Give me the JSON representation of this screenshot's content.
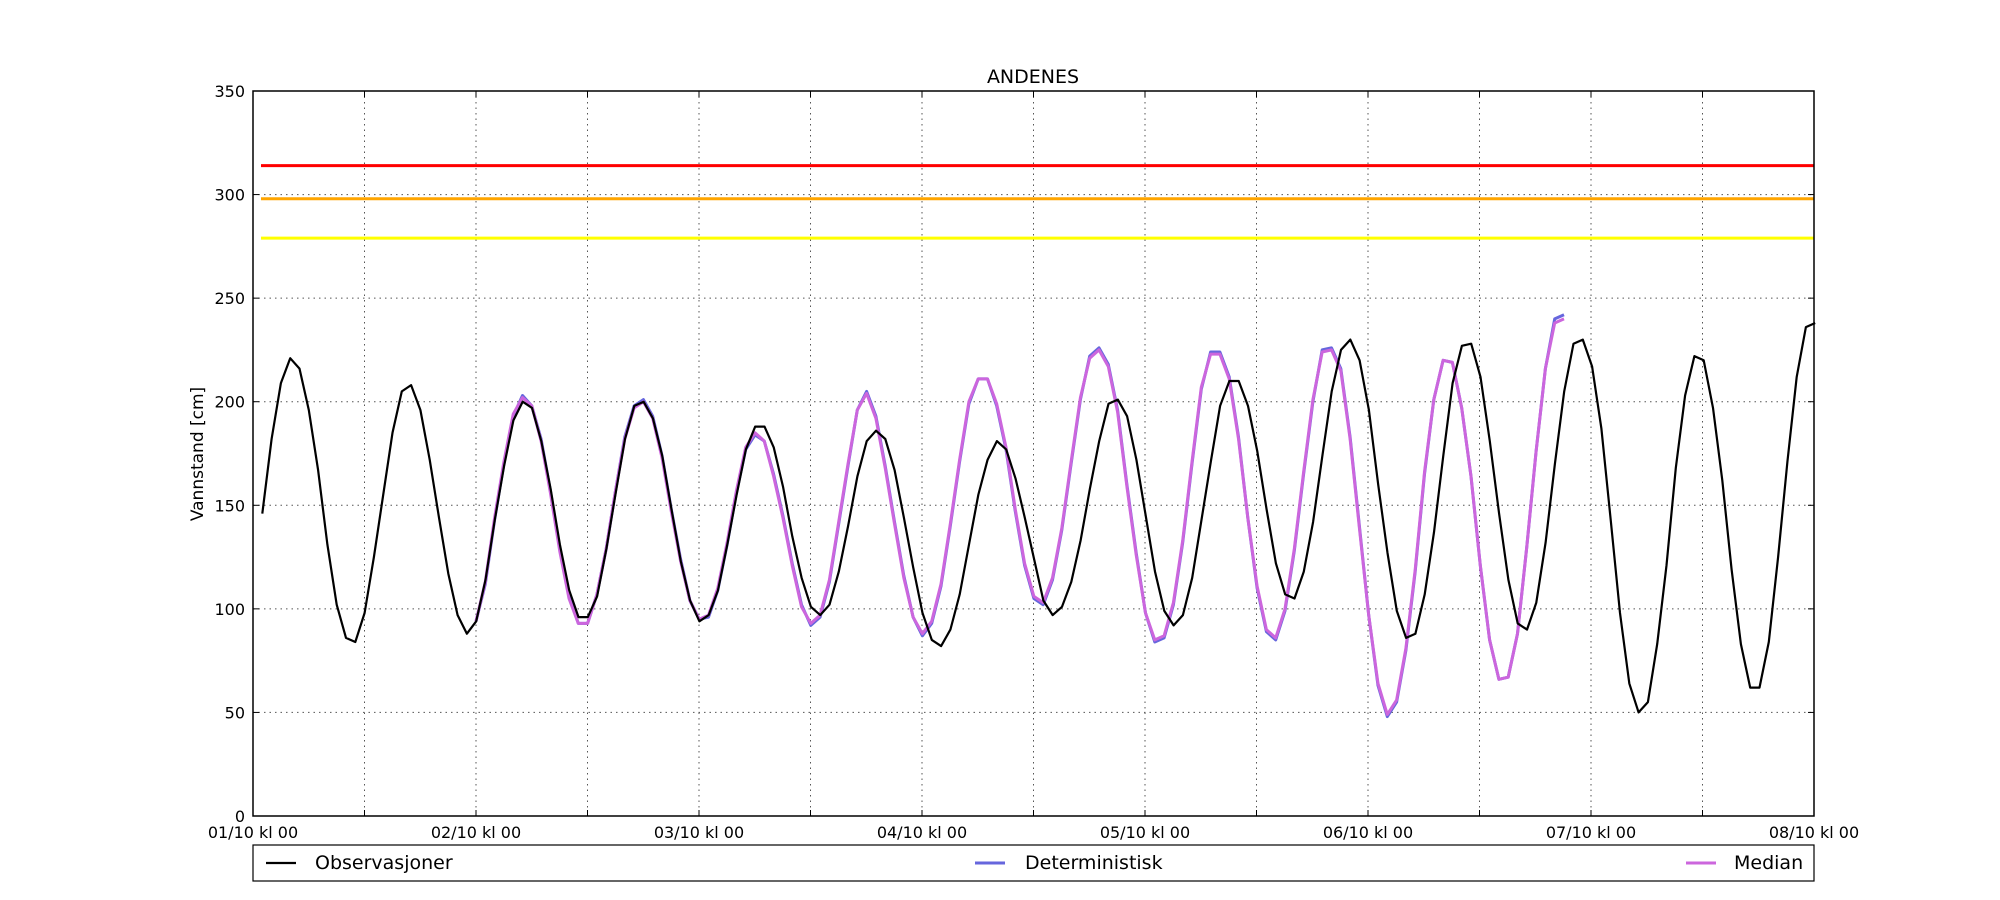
{
  "chart_data": {
    "type": "line",
    "title": "ANDENES",
    "xlabel": "",
    "ylabel": "Vannstand [cm]",
    "ylim": [
      0,
      350
    ],
    "yticks": [
      0,
      50,
      100,
      150,
      200,
      250,
      300,
      350
    ],
    "xlim": [
      0,
      7
    ],
    "x_unit": "days after 01/10 kl 00",
    "xtick_labels": [
      "01/10 kl 00",
      "02/10 kl 00",
      "03/10 kl 00",
      "04/10 kl 00",
      "05/10 kl 00",
      "06/10 kl 00",
      "07/10 kl 00",
      "08/10 kl 00"
    ],
    "grid": true,
    "legend_position": "bottom",
    "thresholds": [
      {
        "value": 314,
        "color": "#ff0000"
      },
      {
        "value": 298,
        "color": "#ffa500"
      },
      {
        "value": 279,
        "color": "#ffff00"
      }
    ],
    "series": [
      {
        "name": "Observasjoner",
        "color": "#000000",
        "x_start": 0.0417,
        "x_step": 0.0417,
        "values": [
          146,
          182,
          209,
          221,
          216,
          196,
          167,
          131,
          102,
          86,
          84,
          98,
          125,
          155,
          185,
          205,
          208,
          196,
          172,
          144,
          117,
          97,
          88,
          94,
          114,
          143,
          169,
          191,
          200,
          197,
          181,
          158,
          131,
          109,
          96,
          96,
          106,
          129,
          156,
          182,
          198,
          200,
          192,
          174,
          148,
          123,
          104,
          94,
          97,
          109,
          131,
          155,
          177,
          188,
          188,
          178,
          159,
          135,
          115,
          101,
          97,
          102,
          118,
          140,
          164,
          181,
          186,
          182,
          167,
          144,
          120,
          98,
          85,
          82,
          90,
          107,
          131,
          155,
          172,
          181,
          177,
          163,
          144,
          124,
          104,
          97,
          101,
          113,
          133,
          158,
          181,
          199,
          201,
          193,
          172,
          145,
          118,
          99,
          92,
          97,
          115,
          143,
          171,
          198,
          210,
          210,
          198,
          176,
          148,
          122,
          107,
          105,
          118,
          142,
          174,
          205,
          225,
          230,
          220,
          196,
          160,
          127,
          99,
          86,
          88,
          107,
          137,
          174,
          209,
          227,
          228,
          212,
          181,
          146,
          114,
          93,
          90,
          103,
          132,
          170,
          205,
          228,
          230,
          217,
          187,
          143,
          98,
          64,
          50,
          55,
          83,
          121,
          168,
          203,
          222,
          220,
          197,
          162,
          119,
          83,
          62,
          62,
          84,
          125,
          171,
          212,
          236,
          238
        ],
        "description": "y in cm"
      },
      {
        "name": "Deterministisk",
        "color": "#6666dd",
        "x_start": 1.0,
        "x_step": 0.0417,
        "values": [
          94,
          112,
          143,
          170,
          193,
          203,
          198,
          182,
          157,
          129,
          106,
          93,
          93,
          107,
          129,
          157,
          183,
          198,
          201,
          193,
          174,
          148,
          124,
          104,
          95,
          96,
          109,
          131,
          156,
          177,
          184,
          181,
          165,
          145,
          122,
          102,
          92,
          96,
          113,
          141,
          169,
          196,
          205,
          193,
          169,
          142,
          116,
          96,
          87,
          93,
          111,
          140,
          171,
          199,
          211,
          211,
          198,
          177,
          147,
          121,
          105,
          102,
          114,
          138,
          170,
          201,
          222,
          226,
          218,
          196,
          160,
          127,
          98,
          84,
          86,
          102,
          132,
          170,
          206,
          224,
          224,
          212,
          183,
          144,
          110,
          89,
          85,
          99,
          128,
          165,
          200,
          225,
          226,
          216,
          183,
          140,
          97,
          63,
          48,
          55,
          80,
          118,
          165,
          201,
          220,
          219,
          197,
          164,
          121,
          85,
          66,
          67,
          88,
          130,
          176,
          216,
          240,
          242
        ]
      },
      {
        "name": "Median",
        "color": "#cc66dd",
        "x_start": 1.0,
        "x_step": 0.0417,
        "values": [
          94,
          113,
          144,
          171,
          194,
          202,
          198,
          181,
          156,
          128,
          105,
          93,
          93,
          107,
          129,
          157,
          182,
          197,
          200,
          192,
          173,
          147,
          123,
          104,
          95,
          97,
          110,
          132,
          157,
          178,
          185,
          181,
          164,
          144,
          121,
          101,
          93,
          97,
          114,
          142,
          170,
          196,
          204,
          192,
          168,
          141,
          115,
          96,
          88,
          94,
          112,
          141,
          172,
          200,
          211,
          211,
          199,
          178,
          148,
          122,
          106,
          103,
          115,
          139,
          171,
          202,
          221,
          225,
          217,
          195,
          159,
          126,
          98,
          85,
          87,
          103,
          133,
          171,
          207,
          223,
          223,
          211,
          182,
          144,
          111,
          90,
          86,
          100,
          129,
          166,
          201,
          224,
          225,
          215,
          182,
          139,
          97,
          64,
          49,
          56,
          81,
          119,
          166,
          201,
          220,
          219,
          197,
          164,
          121,
          85,
          66,
          67,
          88,
          130,
          176,
          216,
          238,
          240
        ]
      }
    ]
  }
}
